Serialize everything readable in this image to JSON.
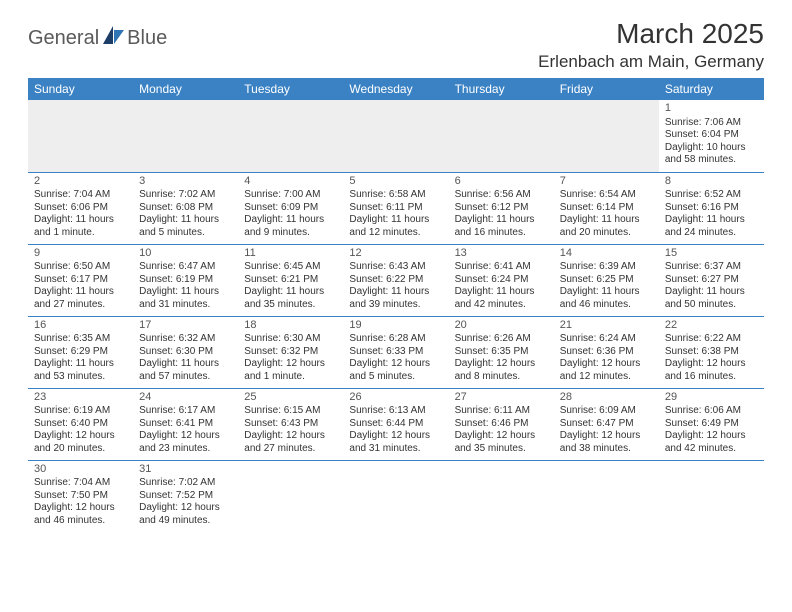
{
  "logo": {
    "part1": "General",
    "part2": "Blue"
  },
  "title": "March 2025",
  "location": "Erlenbach am Main, Germany",
  "colors": {
    "header_bg": "#3b82c4",
    "header_text": "#ffffff",
    "cell_border": "#3b82c4",
    "empty_bg": "#eeeeee",
    "text": "#333333",
    "logo_gray": "#5a5a5a",
    "logo_blue": "#2f74b5"
  },
  "typography": {
    "title_fontsize": 28,
    "location_fontsize": 17,
    "dayheader_fontsize": 12,
    "cell_fontsize": 10,
    "daynum_fontsize": 11
  },
  "day_headers": [
    "Sunday",
    "Monday",
    "Tuesday",
    "Wednesday",
    "Thursday",
    "Friday",
    "Saturday"
  ],
  "weeks": [
    [
      null,
      null,
      null,
      null,
      null,
      null,
      {
        "n": "1",
        "sr": "Sunrise: 7:06 AM",
        "ss": "Sunset: 6:04 PM",
        "d1": "Daylight: 10 hours",
        "d2": "and 58 minutes."
      }
    ],
    [
      {
        "n": "2",
        "sr": "Sunrise: 7:04 AM",
        "ss": "Sunset: 6:06 PM",
        "d1": "Daylight: 11 hours",
        "d2": "and 1 minute."
      },
      {
        "n": "3",
        "sr": "Sunrise: 7:02 AM",
        "ss": "Sunset: 6:08 PM",
        "d1": "Daylight: 11 hours",
        "d2": "and 5 minutes."
      },
      {
        "n": "4",
        "sr": "Sunrise: 7:00 AM",
        "ss": "Sunset: 6:09 PM",
        "d1": "Daylight: 11 hours",
        "d2": "and 9 minutes."
      },
      {
        "n": "5",
        "sr": "Sunrise: 6:58 AM",
        "ss": "Sunset: 6:11 PM",
        "d1": "Daylight: 11 hours",
        "d2": "and 12 minutes."
      },
      {
        "n": "6",
        "sr": "Sunrise: 6:56 AM",
        "ss": "Sunset: 6:12 PM",
        "d1": "Daylight: 11 hours",
        "d2": "and 16 minutes."
      },
      {
        "n": "7",
        "sr": "Sunrise: 6:54 AM",
        "ss": "Sunset: 6:14 PM",
        "d1": "Daylight: 11 hours",
        "d2": "and 20 minutes."
      },
      {
        "n": "8",
        "sr": "Sunrise: 6:52 AM",
        "ss": "Sunset: 6:16 PM",
        "d1": "Daylight: 11 hours",
        "d2": "and 24 minutes."
      }
    ],
    [
      {
        "n": "9",
        "sr": "Sunrise: 6:50 AM",
        "ss": "Sunset: 6:17 PM",
        "d1": "Daylight: 11 hours",
        "d2": "and 27 minutes."
      },
      {
        "n": "10",
        "sr": "Sunrise: 6:47 AM",
        "ss": "Sunset: 6:19 PM",
        "d1": "Daylight: 11 hours",
        "d2": "and 31 minutes."
      },
      {
        "n": "11",
        "sr": "Sunrise: 6:45 AM",
        "ss": "Sunset: 6:21 PM",
        "d1": "Daylight: 11 hours",
        "d2": "and 35 minutes."
      },
      {
        "n": "12",
        "sr": "Sunrise: 6:43 AM",
        "ss": "Sunset: 6:22 PM",
        "d1": "Daylight: 11 hours",
        "d2": "and 39 minutes."
      },
      {
        "n": "13",
        "sr": "Sunrise: 6:41 AM",
        "ss": "Sunset: 6:24 PM",
        "d1": "Daylight: 11 hours",
        "d2": "and 42 minutes."
      },
      {
        "n": "14",
        "sr": "Sunrise: 6:39 AM",
        "ss": "Sunset: 6:25 PM",
        "d1": "Daylight: 11 hours",
        "d2": "and 46 minutes."
      },
      {
        "n": "15",
        "sr": "Sunrise: 6:37 AM",
        "ss": "Sunset: 6:27 PM",
        "d1": "Daylight: 11 hours",
        "d2": "and 50 minutes."
      }
    ],
    [
      {
        "n": "16",
        "sr": "Sunrise: 6:35 AM",
        "ss": "Sunset: 6:29 PM",
        "d1": "Daylight: 11 hours",
        "d2": "and 53 minutes."
      },
      {
        "n": "17",
        "sr": "Sunrise: 6:32 AM",
        "ss": "Sunset: 6:30 PM",
        "d1": "Daylight: 11 hours",
        "d2": "and 57 minutes."
      },
      {
        "n": "18",
        "sr": "Sunrise: 6:30 AM",
        "ss": "Sunset: 6:32 PM",
        "d1": "Daylight: 12 hours",
        "d2": "and 1 minute."
      },
      {
        "n": "19",
        "sr": "Sunrise: 6:28 AM",
        "ss": "Sunset: 6:33 PM",
        "d1": "Daylight: 12 hours",
        "d2": "and 5 minutes."
      },
      {
        "n": "20",
        "sr": "Sunrise: 6:26 AM",
        "ss": "Sunset: 6:35 PM",
        "d1": "Daylight: 12 hours",
        "d2": "and 8 minutes."
      },
      {
        "n": "21",
        "sr": "Sunrise: 6:24 AM",
        "ss": "Sunset: 6:36 PM",
        "d1": "Daylight: 12 hours",
        "d2": "and 12 minutes."
      },
      {
        "n": "22",
        "sr": "Sunrise: 6:22 AM",
        "ss": "Sunset: 6:38 PM",
        "d1": "Daylight: 12 hours",
        "d2": "and 16 minutes."
      }
    ],
    [
      {
        "n": "23",
        "sr": "Sunrise: 6:19 AM",
        "ss": "Sunset: 6:40 PM",
        "d1": "Daylight: 12 hours",
        "d2": "and 20 minutes."
      },
      {
        "n": "24",
        "sr": "Sunrise: 6:17 AM",
        "ss": "Sunset: 6:41 PM",
        "d1": "Daylight: 12 hours",
        "d2": "and 23 minutes."
      },
      {
        "n": "25",
        "sr": "Sunrise: 6:15 AM",
        "ss": "Sunset: 6:43 PM",
        "d1": "Daylight: 12 hours",
        "d2": "and 27 minutes."
      },
      {
        "n": "26",
        "sr": "Sunrise: 6:13 AM",
        "ss": "Sunset: 6:44 PM",
        "d1": "Daylight: 12 hours",
        "d2": "and 31 minutes."
      },
      {
        "n": "27",
        "sr": "Sunrise: 6:11 AM",
        "ss": "Sunset: 6:46 PM",
        "d1": "Daylight: 12 hours",
        "d2": "and 35 minutes."
      },
      {
        "n": "28",
        "sr": "Sunrise: 6:09 AM",
        "ss": "Sunset: 6:47 PM",
        "d1": "Daylight: 12 hours",
        "d2": "and 38 minutes."
      },
      {
        "n": "29",
        "sr": "Sunrise: 6:06 AM",
        "ss": "Sunset: 6:49 PM",
        "d1": "Daylight: 12 hours",
        "d2": "and 42 minutes."
      }
    ],
    [
      {
        "n": "30",
        "sr": "Sunrise: 7:04 AM",
        "ss": "Sunset: 7:50 PM",
        "d1": "Daylight: 12 hours",
        "d2": "and 46 minutes."
      },
      {
        "n": "31",
        "sr": "Sunrise: 7:02 AM",
        "ss": "Sunset: 7:52 PM",
        "d1": "Daylight: 12 hours",
        "d2": "and 49 minutes."
      },
      null,
      null,
      null,
      null,
      null
    ]
  ]
}
